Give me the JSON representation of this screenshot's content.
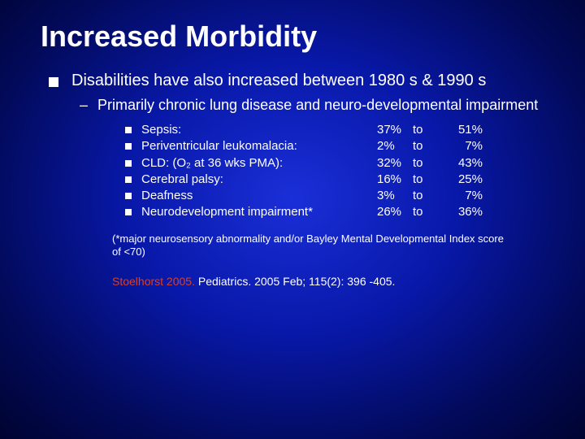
{
  "title": "Increased Morbidity",
  "level1": "Disabilities have also increased between 1980 s & 1990 s",
  "level2": "Primarily chronic lung disease and neuro-developmental impairment",
  "dash": "–",
  "rows": [
    {
      "label": "Sepsis:",
      "v1": "37%",
      "to": "to",
      "v2": "51%"
    },
    {
      "label": "Periventricular leukomalacia:",
      "v1": "2%",
      "to": "to",
      "v2": "7%"
    },
    {
      "label": "CLD: (O₂ at 36 wks PMA):",
      "v1": "32%",
      "to": "to",
      "v2": "43%"
    },
    {
      "label": "Cerebral palsy:",
      "v1": "16%",
      "to": "to",
      "v2": "25%"
    },
    {
      "label": "Deafness",
      "v1": "3%",
      "to": "to",
      "v2": "7%"
    },
    {
      "label": "Neurodevelopment impairment*",
      "v1": "26%",
      "to": "to",
      "v2": "36%"
    }
  ],
  "footnote": "(*major neurosensory abnormality and/or Bayley Mental Developmental Index score of <70)",
  "citation_author": "Stoelhorst 2005.",
  "citation_rest": " Pediatrics. 2005 Feb; 115(2): 396 -405."
}
